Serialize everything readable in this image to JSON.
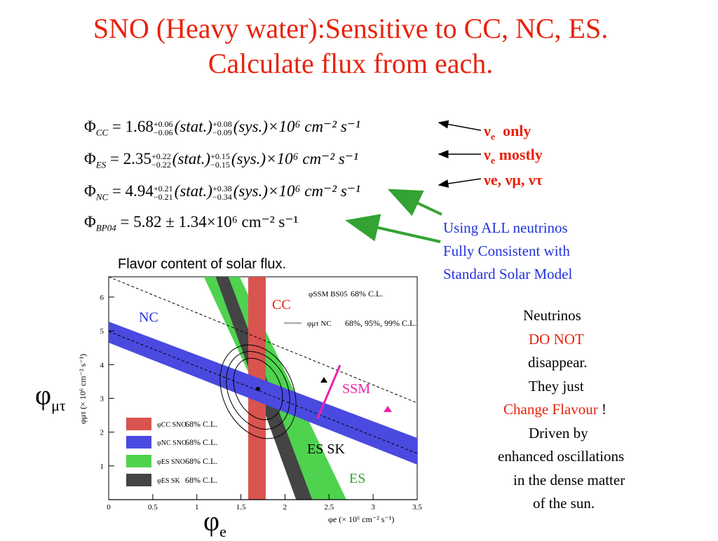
{
  "title": {
    "line1": "SNO (Heavy water):Sensitive to CC, NC, ES.",
    "line2": "Calculate flux from each."
  },
  "equations": [
    {
      "sym": "Φ",
      "sub": "CC",
      "value": "1.68",
      "stat_up": "+0.06",
      "stat_dn": "−0.06",
      "stat": "(stat.)",
      "sys_up": "+0.08",
      "sys_dn": "−0.09",
      "sys": "(sys.)",
      "tail": "×10⁶ cm⁻² s⁻¹"
    },
    {
      "sym": "Φ",
      "sub": "ES",
      "value": "2.35",
      "stat_up": "+0.22",
      "stat_dn": "−0.22",
      "stat": "(stat.)",
      "sys_up": "+0.15",
      "sys_dn": "−0.15",
      "sys": "(sys.)",
      "tail": "×10⁶ cm⁻² s⁻¹"
    },
    {
      "sym": "Φ",
      "sub": "NC",
      "value": "4.94",
      "stat_up": "+0.21",
      "stat_dn": "−0.21",
      "stat": "(stat.)",
      "sys_up": "+0.38",
      "sys_dn": "−0.34",
      "sys": "(sys.)",
      "tail": "×10⁶ cm⁻² s⁻¹"
    },
    {
      "sym": "Φ",
      "sub": "BP04",
      "value": "5.82 ± 1.34×10⁶ cm⁻² s⁻¹"
    }
  ],
  "nu_labels": {
    "cc": {
      "nu": "ν",
      "sub": "e",
      "text": "only"
    },
    "es": {
      "nu": "ν",
      "sub": "e",
      "text": "mostly"
    },
    "nc": {
      "text": "νe, νμ, ντ"
    }
  },
  "consistency_note": {
    "line1": "Using ALL neutrinos",
    "line2": "Fully Consistent with",
    "line3": "Standard Solar Model"
  },
  "plot_caption": "Flavor content of solar flux.",
  "plot": {
    "band_labels": {
      "nc": "NC",
      "cc": "CC",
      "ssm": "SSM",
      "essk": "ES SK",
      "es": "ES"
    },
    "x_title": "φe (× 10⁶ cm⁻² s⁻¹)",
    "y_title": "φμτ (× 10⁶ cm⁻² s⁻¹)",
    "x_ticks": [
      "0",
      "0.5",
      "1",
      "1.5",
      "2",
      "2.5",
      "3",
      "3.5"
    ],
    "y_ticks": [
      "1",
      "2",
      "3",
      "4",
      "5",
      "6"
    ],
    "legend_top": [
      {
        "sym": "φSSM BS05",
        "text": "68% C.L."
      },
      {
        "sym": "φμτ NC",
        "text": "68%, 95%, 99% C.L."
      }
    ],
    "legend_bottom": [
      {
        "sym": "φCC SNO",
        "text": "68% C.L.",
        "color": "#d9534f"
      },
      {
        "sym": "φNC SNO",
        "text": "68% C.L.",
        "color": "#4a4ae0"
      },
      {
        "sym": "φES SNO",
        "text": "68% C.L.",
        "color": "#4fd34f"
      },
      {
        "sym": "φES SK",
        "text": "68% C.L.",
        "color": "#444444"
      }
    ]
  },
  "big_axis": {
    "y": "φ",
    "y_sub": "μτ",
    "x": "φ",
    "x_sub": "e"
  },
  "side_text": {
    "l1": "Neutrinos",
    "l2": "DO NOT",
    "l3": "disappear.",
    "l4": "They just",
    "l5a": "Change  Flavour",
    "l5b": " !",
    "l6": "Driven by",
    "l7": "enhanced oscillations",
    "l8": "in the dense matter",
    "l9": "of the sun."
  },
  "colors": {
    "title": "#e8220c",
    "note": "#2233dd",
    "cc": "#d9534f",
    "nc": "#4a4ae0",
    "es": "#4fd34f",
    "essk": "#444444",
    "ssm": "#ee22aa",
    "arrow_green": "#33a333"
  }
}
